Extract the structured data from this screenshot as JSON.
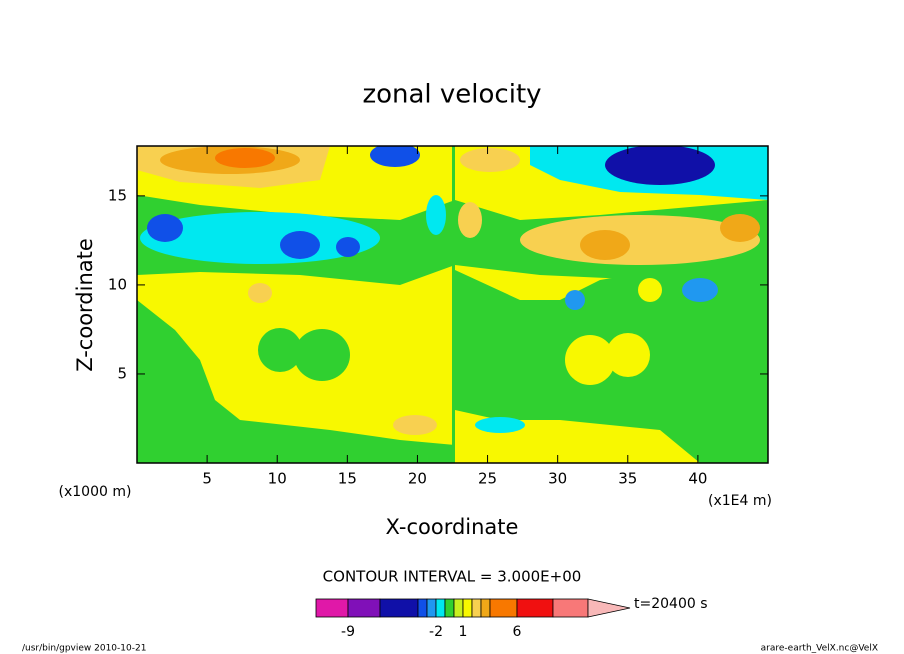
{
  "chart_data": {
    "type": "contour",
    "title": "zonal velocity",
    "x_label": "X-coordinate",
    "y_label": "Z-coordinate",
    "x_unit": "(x1E4 m)",
    "y_unit": "(x1000 m)",
    "xlim": [
      0,
      45
    ],
    "xticks": [
      5,
      10,
      15,
      20,
      25,
      30,
      35,
      40
    ],
    "ylim": [
      0,
      17.8
    ],
    "yticks": [
      5,
      10,
      15
    ],
    "contour_interval": "CONTOUR INTERVAL = 3.000E+00",
    "time_label": "t=20400 s",
    "colorbar": {
      "colors": [
        "#e018a8",
        "#8010b8",
        "#1010a8",
        "#1050e8",
        "#2098f0",
        "#00e8f0",
        "#30d030",
        "#c8f020",
        "#f8f800",
        "#f8d050",
        "#f0a818",
        "#f87800",
        "#f01010",
        "#f87878",
        "#f8b8b8"
      ],
      "ticks": [
        "-9",
        "-2",
        "1",
        "6"
      ]
    },
    "footer_left": "/usr/bin/gpview  2010-10-21",
    "footer_right": "arare-earth_VelX.nc@VelX"
  }
}
